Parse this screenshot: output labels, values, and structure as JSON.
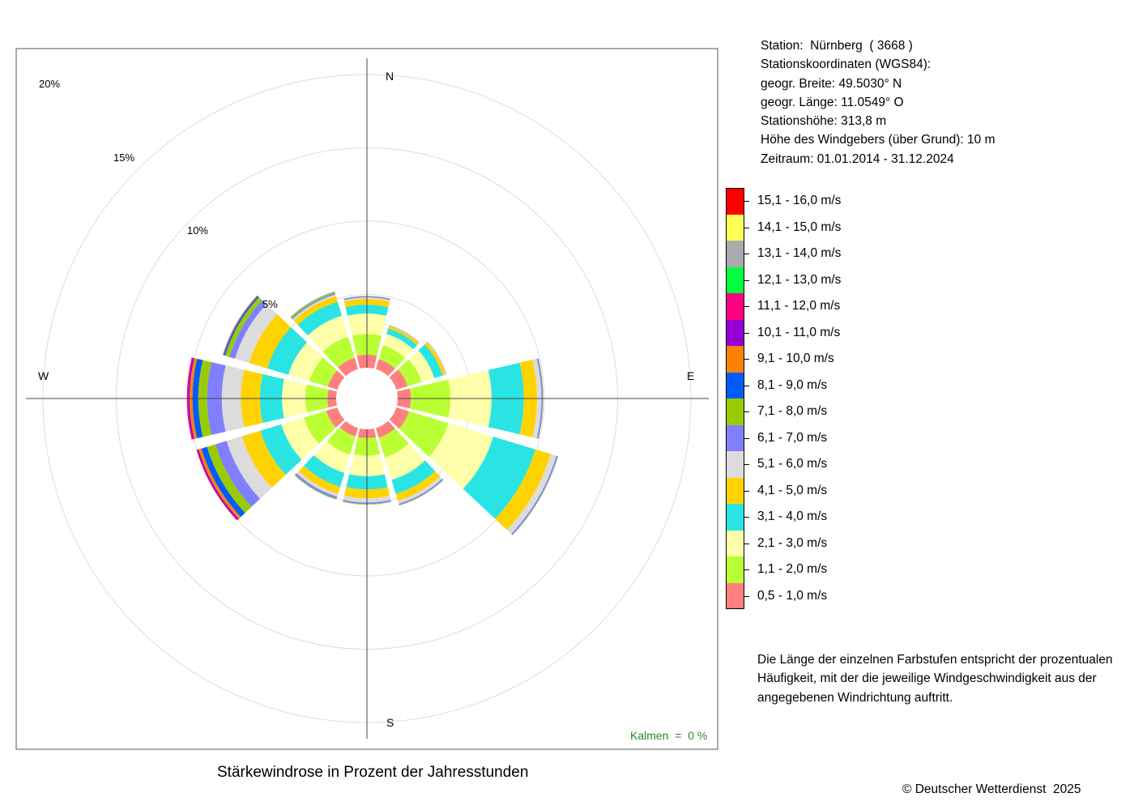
{
  "info": {
    "station": "Station:  Nürnberg  ( 3668 )",
    "coords_header": "Stationskoordinaten (WGS84):",
    "latitude": "geogr. Breite: 49.5030° N",
    "longitude": "geogr. Länge: 11.0549° O",
    "elevation": "Stationshöhe: 313,8 m",
    "sensor_height": "Höhe des Windgebers (über Grund): 10 m",
    "period": "Zeitraum: 01.01.2014 - 31.12.2024"
  },
  "note": {
    "line1": "Die Länge der einzelnen Farbstufen entspricht der prozentualen",
    "line2": "Häufigkeit, mit der die jeweilige Windgeschwindigkeit aus der",
    "line3": "angegebenen Windrichtung auftritt."
  },
  "title": "Stärkewindrose in Prozent der Jahresstunden",
  "copyright": "© Deutscher Wetterdienst  2025",
  "chart_data": {
    "type": "windrose",
    "title": "Stärkewindrose in Prozent der Jahresstunden",
    "compass_labels": {
      "N": "N",
      "E": "E",
      "S": "S",
      "W": "W"
    },
    "ring_percent": [
      5,
      10,
      15,
      20
    ],
    "ring_labels": [
      "5%",
      "10%",
      "15%",
      "20%"
    ],
    "calm_label": "Kalmen  =  0 %",
    "directions_deg": [
      0,
      30,
      60,
      90,
      120,
      150,
      180,
      210,
      240,
      270,
      300,
      330
    ],
    "speed_classes": [
      {
        "label": "0,5 - 1,0 m/s",
        "color": "#ff7f7f"
      },
      {
        "label": "1,1 - 2,0 m/s",
        "color": "#b9ff33"
      },
      {
        "label": "2,1 - 3,0 m/s",
        "color": "#ffffaa"
      },
      {
        "label": "3,1 - 4,0 m/s",
        "color": "#2ae4e4"
      },
      {
        "label": "4,1 - 5,0 m/s",
        "color": "#ffd300"
      },
      {
        "label": "5,1 - 6,0 m/s",
        "color": "#dcdcdc"
      },
      {
        "label": "6,1 - 7,0 m/s",
        "color": "#8080ff"
      },
      {
        "label": "7,1 - 8,0 m/s",
        "color": "#99cc00"
      },
      {
        "label": "8,1 - 9,0 m/s",
        "color": "#005cff"
      },
      {
        "label": "9,1 - 10,0 m/s",
        "color": "#ff8000"
      },
      {
        "label": "10,1 - 11,0 m/s",
        "color": "#9400d3"
      },
      {
        "label": "11,1 - 12,0 m/s",
        "color": "#ff0080"
      },
      {
        "label": "12,1 - 13,0 m/s",
        "color": "#00ff40"
      },
      {
        "label": "13,1 - 14,0 m/s",
        "color": "#aaaaaa"
      },
      {
        "label": "14,1 - 15,0 m/s",
        "color": "#ffff55"
      },
      {
        "label": "15,1 - 16,0 m/s",
        "color": "#ff0000"
      }
    ],
    "series": [
      {
        "direction": 0,
        "values": [
          0.9,
          1.4,
          1.4,
          0.6,
          0.4,
          0.1,
          0.08,
          0.02,
          0,
          0,
          0,
          0,
          0,
          0,
          0,
          0
        ]
      },
      {
        "direction": 30,
        "values": [
          0.7,
          1.0,
          0.8,
          0.4,
          0.18,
          0.03,
          0.03,
          0,
          0,
          0,
          0,
          0,
          0,
          0,
          0,
          0
        ]
      },
      {
        "direction": 60,
        "values": [
          0.8,
          1.0,
          0.9,
          0.6,
          0.22,
          0.04,
          0.02,
          0,
          0,
          0,
          0,
          0,
          0,
          0,
          0,
          0
        ]
      },
      {
        "direction": 90,
        "values": [
          0.9,
          2.7,
          2.8,
          2.2,
          0.9,
          0.3,
          0.1,
          0.03,
          0,
          0,
          0,
          0,
          0,
          0,
          0,
          0
        ]
      },
      {
        "direction": 120,
        "values": [
          0.9,
          2.8,
          3.2,
          3.0,
          1.1,
          0.4,
          0.1,
          0.03,
          0,
          0,
          0,
          0,
          0,
          0,
          0,
          0
        ]
      },
      {
        "direction": 150,
        "values": [
          0.7,
          1.4,
          1.6,
          1.0,
          0.5,
          0.2,
          0.1,
          0.03,
          0,
          0,
          0,
          0,
          0,
          0,
          0,
          0
        ]
      },
      {
        "direction": 180,
        "values": [
          0.6,
          1.2,
          1.4,
          0.9,
          0.6,
          0.3,
          0.1,
          0.04,
          0,
          0,
          0,
          0,
          0,
          0,
          0,
          0
        ]
      },
      {
        "direction": 210,
        "values": [
          0.6,
          1.3,
          1.3,
          1.0,
          0.5,
          0.2,
          0.12,
          0.05,
          0.02,
          0,
          0,
          0,
          0,
          0,
          0,
          0
        ]
      },
      {
        "direction": 240,
        "values": [
          0.8,
          1.6,
          1.6,
          1.5,
          1.3,
          1.1,
          0.8,
          0.6,
          0.4,
          0.2,
          0.1,
          0.05,
          0,
          0,
          0,
          0
        ]
      },
      {
        "direction": 270,
        "values": [
          0.6,
          1.5,
          1.6,
          1.5,
          1.3,
          1.3,
          1.0,
          0.6,
          0.4,
          0.2,
          0.1,
          0.08,
          0,
          0,
          0,
          0
        ]
      },
      {
        "direction": 300,
        "values": [
          0.7,
          1.3,
          1.5,
          1.5,
          1.3,
          1.0,
          0.4,
          0.3,
          0.1,
          0.04,
          0.03,
          0,
          0,
          0,
          0,
          0
        ]
      },
      {
        "direction": 330,
        "values": [
          0.8,
          1.5,
          1.5,
          1.0,
          0.4,
          0.12,
          0.08,
          0.1,
          0.02,
          0,
          0,
          0,
          0,
          0,
          0,
          0
        ]
      }
    ]
  }
}
